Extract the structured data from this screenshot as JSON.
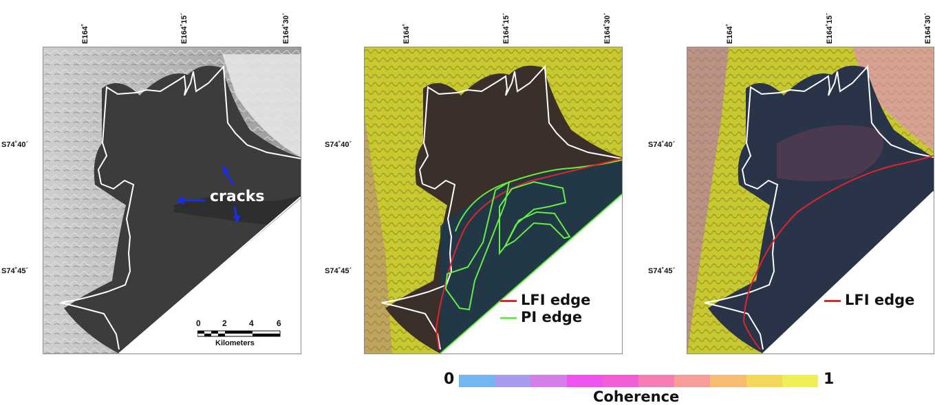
{
  "axes": {
    "longitudes": [
      "E164˚",
      "E164˚15´",
      "E164˚30´"
    ],
    "latitudes": [
      "S74˚40´",
      "S74˚45´"
    ]
  },
  "panel1": {
    "annotation": "cracks",
    "scale": {
      "ticks": [
        "0",
        "2",
        "4",
        "6"
      ],
      "units": "Kilometers"
    }
  },
  "panel2": {
    "legend": [
      {
        "label": "LFI edge",
        "color": "#e0242a"
      },
      {
        "label": "PI edge",
        "color": "#66ee44"
      }
    ]
  },
  "panel3": {
    "legend": [
      {
        "label": "LFI edge",
        "color": "#e0242a"
      }
    ]
  },
  "colorbar": {
    "min": "0",
    "max": "1",
    "title": "Coherence",
    "colors": [
      "#74b6f2",
      "#a99af0",
      "#d37ee9",
      "#ee52ef",
      "#f35ed2",
      "#f57db6",
      "#f69d97",
      "#f7bc72",
      "#f2d75a",
      "#eeee55"
    ]
  },
  "colors": {
    "boundary": "#ffffff",
    "arrow": "#1a2ee6",
    "ocean": "#ffffff"
  }
}
